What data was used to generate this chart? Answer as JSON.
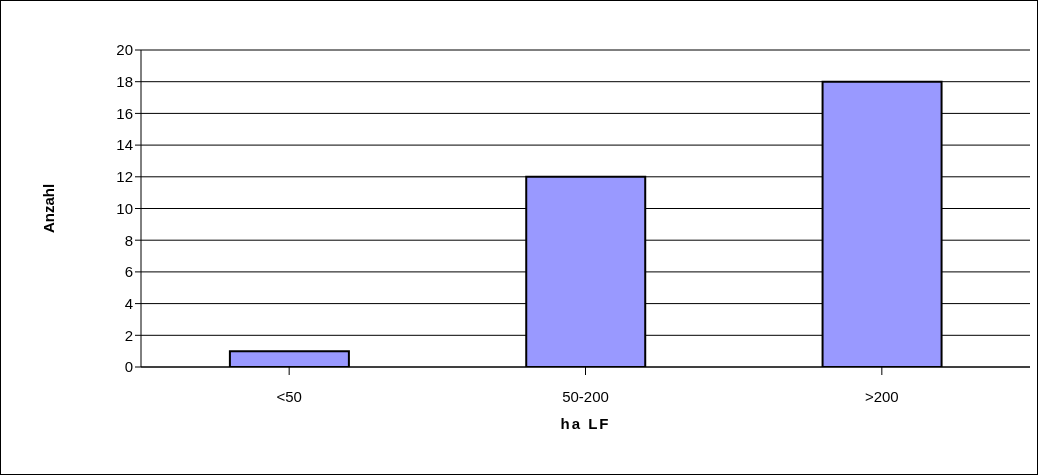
{
  "chart_data": {
    "type": "bar",
    "xlabel": "ha LF",
    "ylabel": "Anzahl",
    "categories": [
      "<50",
      "50-200",
      ">200"
    ],
    "values": [
      1,
      12,
      18
    ],
    "color": "#9999ff",
    "ylim": [
      0,
      20
    ],
    "yticks": [
      0,
      2,
      4,
      6,
      8,
      10,
      12,
      14,
      16,
      18,
      20
    ],
    "grid": "y"
  }
}
